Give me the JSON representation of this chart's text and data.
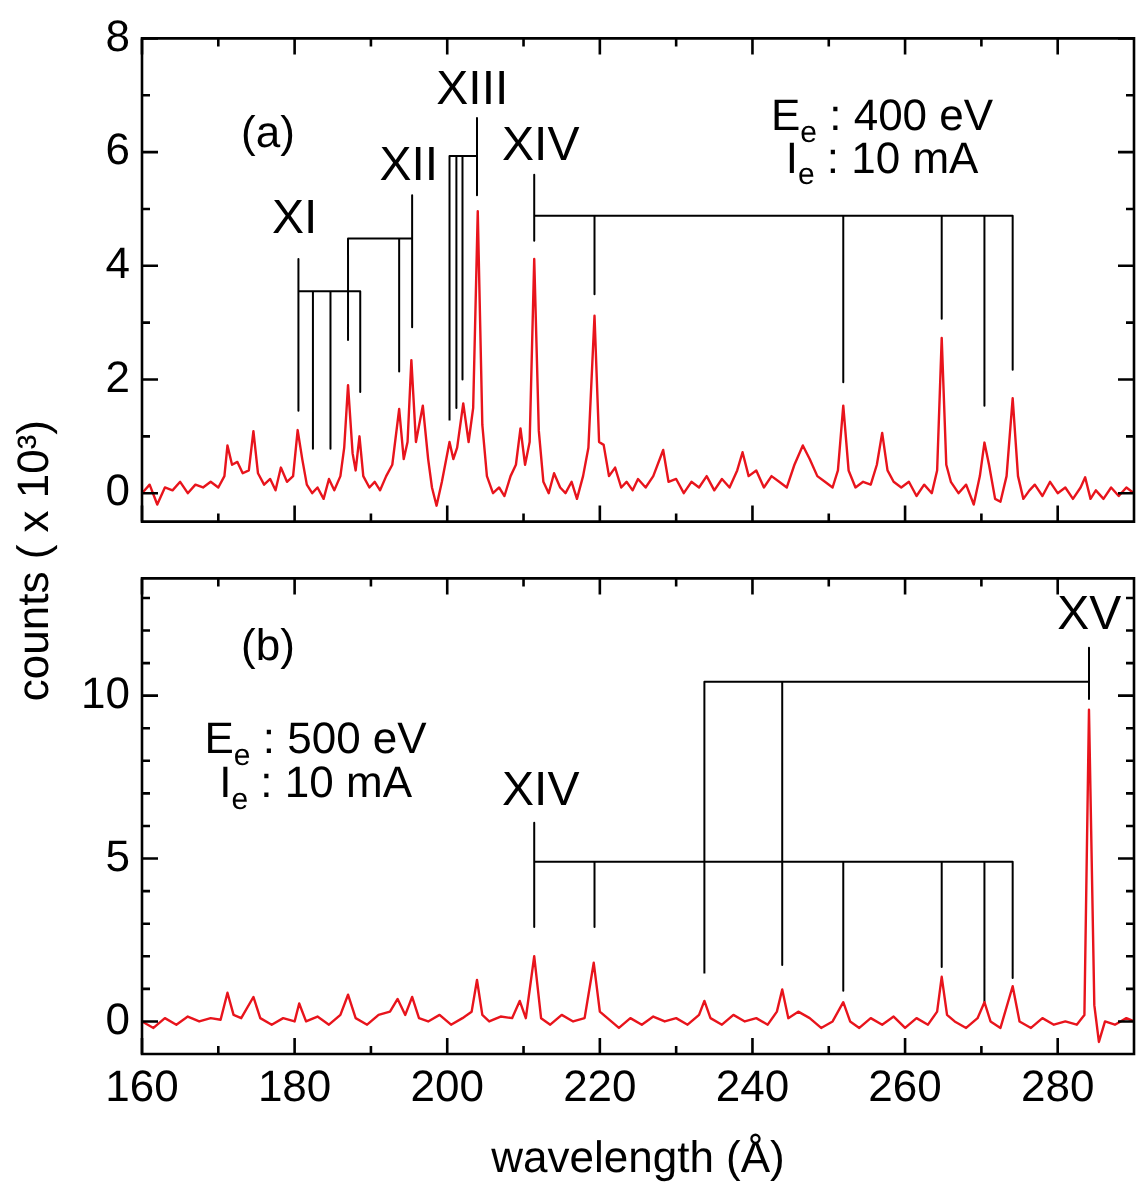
{
  "chart_data": [
    {
      "type": "line",
      "ylabel": "counts ( x 10³)",
      "xlim": [
        160,
        290
      ],
      "ylim": [
        -0.5,
        8
      ],
      "xticks": [
        160,
        {
          "value": 170,
          "label": null
        },
        180,
        {
          "value": 190,
          "label": null
        },
        200,
        {
          "value": 210,
          "label": null
        },
        220,
        {
          "value": 230,
          "label": null
        },
        240,
        {
          "value": 250,
          "label": null
        },
        260,
        {
          "value": 270,
          "label": null
        },
        280
      ],
      "yticks": [
        0,
        {
          "value": 1,
          "label": null
        },
        2,
        {
          "value": 3,
          "label": null
        },
        4,
        {
          "value": 5,
          "label": null
        },
        6,
        {
          "value": 7,
          "label": null
        },
        8
      ],
      "tick_labels": "y",
      "annotations": [
        "(a)",
        "E$_{e}$ : 400 eV",
        "I$_{e}$ : 10 mA",
        "XI",
        "XII",
        "XIII",
        "XIV"
      ],
      "series": [
        {
          "color": "#e8141c",
          "x": [
            160,
            161,
            162,
            163,
            164,
            165,
            166,
            167,
            168,
            169,
            170,
            170.8,
            171.2,
            171.8,
            172.5,
            173.2,
            174,
            174.6,
            175.2,
            176,
            176.8,
            177.5,
            178.2,
            179,
            179.8,
            180.4,
            181,
            181.6,
            182.3,
            183,
            183.8,
            184.5,
            185.2,
            186,
            186.5,
            187,
            187.6,
            188,
            188.5,
            189,
            189.8,
            190.5,
            191.2,
            192,
            192.8,
            193.7,
            194.3,
            194.8,
            195.3,
            195.9,
            196.8,
            197.5,
            198,
            198.6,
            199.3,
            200.3,
            200.8,
            201.3,
            202.1,
            202.8,
            203.4,
            204,
            204.6,
            205.2,
            206,
            206.8,
            207.5,
            208.3,
            209,
            209.6,
            210.2,
            210.8,
            211.4,
            212,
            212.6,
            213.3,
            214,
            214.8,
            215.5,
            216.3,
            217,
            217.8,
            218.5,
            219.3,
            219.9,
            220.5,
            221.2,
            222,
            222.8,
            223.5,
            224.3,
            225,
            226,
            227,
            228.3,
            229,
            230,
            231,
            232,
            233,
            234,
            235,
            236,
            237,
            238,
            238.7,
            239.5,
            240.5,
            241.5,
            242.5,
            243.5,
            244.5,
            245.5,
            246.6,
            247.5,
            248.5,
            249.5,
            250.5,
            251.2,
            251.9,
            252.6,
            253.5,
            254.5,
            255.5,
            256.3,
            257,
            257.7,
            258.5,
            259.5,
            260.5,
            261.5,
            262.5,
            263.5,
            264.2,
            264.8,
            265.4,
            266,
            267,
            268,
            269,
            269.8,
            270.4,
            271,
            271.8,
            272.5,
            273.3,
            274.1,
            274.8,
            275.5,
            276.3,
            277,
            278,
            279,
            280,
            281,
            282,
            283,
            283.6,
            284.3,
            285,
            286,
            287,
            288,
            289,
            290
          ],
          "values": [
            0,
            0.15,
            -0.2,
            0.1,
            0.05,
            0.2,
            0,
            0.15,
            0.1,
            0.2,
            0.1,
            0.3,
            0.84,
            0.5,
            0.55,
            0.35,
            0.4,
            1.09,
            0.35,
            0.15,
            0.25,
            0.05,
            0.45,
            0.2,
            0.3,
            1.11,
            0.6,
            0.15,
            0,
            0.1,
            -0.1,
            0.25,
            0.05,
            0.3,
            0.8,
            1.9,
            0.7,
            0.4,
            1,
            0.3,
            0.1,
            0.2,
            0.05,
            0.3,
            0.5,
            1.48,
            0.6,
            0.9,
            2.34,
            0.9,
            1.54,
            0.6,
            0.1,
            -0.22,
            0.2,
            0.9,
            0.6,
            0.8,
            1.58,
            0.9,
            1.5,
            4.96,
            1.2,
            0.3,
            0,
            0.1,
            -0.05,
            0.3,
            0.5,
            1.14,
            0.5,
            0.9,
            4.12,
            1.1,
            0.2,
            0,
            0.35,
            0.1,
            0,
            0.2,
            -0.1,
            0.3,
            0.8,
            3.12,
            0.9,
            0.85,
            0.3,
            0.45,
            0.1,
            0.2,
            0.05,
            0.25,
            0.1,
            0.3,
            0.76,
            0.2,
            0.25,
            0,
            0.2,
            0.1,
            0.3,
            0.05,
            0.25,
            0.1,
            0.4,
            0.72,
            0.3,
            0.4,
            0.1,
            0.3,
            0.2,
            0.1,
            0.5,
            0.84,
            0.6,
            0.3,
            0.2,
            0.1,
            0.4,
            1.54,
            0.4,
            0.1,
            0.2,
            0.15,
            0.5,
            1.06,
            0.4,
            0.2,
            0.1,
            0.2,
            -0.05,
            0.15,
            0,
            0.4,
            2.73,
            0.5,
            0.2,
            0,
            0.15,
            -0.2,
            0.3,
            0.89,
            0.5,
            -0.1,
            -0.15,
            0.3,
            1.67,
            0.3,
            -0.1,
            0.05,
            0.15,
            -0.05,
            0.2,
            0,
            0.1,
            -0.1,
            0.1,
            0.28,
            -0.1,
            0.05,
            -0.1,
            0.1,
            -0.05,
            0.1,
            0
          ]
        },
        {
          "color": "#000000",
          "x": [
            180.5,
            180.5,
            180.5,
            182.4,
            182.4,
            182.4,
            184.7,
            184.7,
            184.7,
            188.6,
            188.6
          ],
          "values": [
            4.12,
            1.45,
            3.55,
            3.55,
            0.78,
            3.55,
            3.55,
            0.78,
            3.55,
            3.55,
            1.78
          ]
        },
        {
          "color": "#000000",
          "x": [
            187,
            187,
            193.7,
            193.7,
            193.7,
            195.4,
            195.4,
            195.4
          ],
          "values": [
            2.68,
            4.48,
            4.48,
            2.14,
            4.48,
            4.48,
            5.24,
            2.92
          ]
        },
        {
          "color": "#000000",
          "x": [
            200.3,
            200.3,
            201.2,
            201.2,
            201.2,
            202,
            202,
            202,
            203.9,
            203.9,
            203.9
          ],
          "values": [
            1.28,
            5.93,
            5.93,
            1.5,
            5.93,
            5.93,
            2,
            5.93,
            5.93,
            6.6,
            5.24
          ]
        },
        {
          "color": "#000000",
          "x": [
            211.4,
            211.4,
            211.4,
            219.3,
            219.3,
            219.3,
            251.9,
            251.9,
            251.9,
            264.8,
            264.8,
            264.8,
            270.4,
            270.4,
            270.4,
            274.1,
            274.1
          ],
          "values": [
            5.6,
            4.44,
            4.88,
            4.88,
            3.5,
            4.88,
            4.88,
            1.95,
            4.88,
            4.88,
            3.07,
            4.88,
            4.88,
            1.54,
            4.88,
            4.88,
            2.17
          ]
        }
      ]
    },
    {
      "type": "line",
      "xlabel": "wavelength (Å)",
      "xlim": [
        160,
        290
      ],
      "ylim": [
        -1,
        13.6
      ],
      "xticks": [
        160,
        {
          "value": 170,
          "label": null
        },
        180,
        {
          "value": 190,
          "label": null
        },
        200,
        {
          "value": 210,
          "label": null
        },
        220,
        {
          "value": 230,
          "label": null
        },
        240,
        {
          "value": 250,
          "label": null
        },
        260,
        {
          "value": 270,
          "label": null
        },
        280
      ],
      "yticks": [
        0,
        {
          "value": 1,
          "label": null
        },
        {
          "value": 2,
          "label": null
        },
        {
          "value": 3,
          "label": null
        },
        {
          "value": 4,
          "label": null
        },
        5,
        {
          "value": 6,
          "label": null
        },
        {
          "value": 7,
          "label": null
        },
        {
          "value": 8,
          "label": null
        },
        {
          "value": 9,
          "label": null
        },
        10,
        {
          "value": 11,
          "label": null
        },
        {
          "value": 12,
          "label": null
        },
        {
          "value": 13,
          "label": null
        }
      ],
      "annotations": [
        "(b)",
        "E$_{e}$ : 500 eV",
        "I$_{e}$ : 10 mA",
        "XIV",
        "XV"
      ],
      "series": [
        {
          "color": "#e8141c",
          "x": [
            160,
            161.5,
            163,
            164.5,
            166,
            167.5,
            169,
            170.3,
            171.2,
            172,
            173,
            174.6,
            175.5,
            177,
            178.5,
            180,
            180.6,
            181.5,
            183,
            184.5,
            186,
            187,
            188,
            189.5,
            191,
            192.5,
            193.5,
            194.5,
            195.4,
            196.3,
            197.5,
            199,
            200.5,
            202,
            203.2,
            203.9,
            204.6,
            205.5,
            207,
            208.5,
            209.5,
            210.3,
            211.4,
            212.3,
            213.5,
            215,
            216.5,
            218,
            219.2,
            220,
            221,
            222.5,
            224,
            225.5,
            227,
            228.5,
            230,
            231.5,
            233,
            233.7,
            234.5,
            236,
            237.5,
            239,
            240.5,
            242,
            243.2,
            243.9,
            244.7,
            246,
            247.5,
            249,
            250.5,
            251.9,
            252.8,
            254,
            255.5,
            257,
            258.5,
            260,
            261.5,
            263,
            264.2,
            264.8,
            265.5,
            266.5,
            268,
            269.5,
            270.4,
            271.2,
            272.5,
            274.1,
            275,
            276.5,
            278,
            279.5,
            281,
            282.5,
            283.5,
            284.1,
            284.8,
            285.4,
            286.2,
            287.5,
            289,
            290
          ],
          "values": [
            0,
            -0.2,
            0.1,
            -0.1,
            0.15,
            0,
            0.1,
            0.05,
            0.88,
            0.2,
            0.1,
            0.75,
            0.1,
            -0.1,
            0.1,
            0,
            0.55,
            0,
            0.15,
            -0.1,
            0.2,
            0.82,
            0.1,
            -0.1,
            0.2,
            0.3,
            0.69,
            0.2,
            0.75,
            0.1,
            0,
            0.2,
            -0.1,
            0.1,
            0.3,
            1.27,
            0.2,
            0,
            0.15,
            0.1,
            0.63,
            0.1,
            2,
            0.1,
            -0.1,
            0.2,
            0,
            0.1,
            1.8,
            0.3,
            0.1,
            -0.2,
            0.1,
            -0.1,
            0.15,
            0,
            0.1,
            -0.1,
            0.2,
            0.63,
            0.1,
            -0.1,
            0.2,
            0,
            0.1,
            -0.1,
            0.3,
            0.98,
            0.1,
            0.3,
            0.1,
            -0.2,
            0,
            0.59,
            0,
            -0.2,
            0.1,
            -0.1,
            0.15,
            -0.2,
            0.1,
            -0.1,
            0.3,
            1.37,
            0.2,
            0,
            -0.2,
            0.1,
            0.59,
            0,
            -0.2,
            1.08,
            0,
            -0.2,
            0.1,
            -0.1,
            0,
            -0.1,
            0.2,
            9.57,
            0.5,
            -0.63,
            0,
            -0.1,
            0.1,
            0
          ]
        },
        {
          "color": "#000000",
          "x": [
            211.4,
            211.4,
            211.4,
            219.3,
            219.3,
            219.3,
            251.9,
            251.9,
            251.9,
            264.8,
            264.8,
            264.8,
            270.4,
            270.4,
            270.4,
            274.1,
            274.1
          ],
          "values": [
            6.1,
            2.9,
            4.9,
            4.9,
            2.9,
            4.9,
            4.9,
            0.94,
            4.9,
            4.9,
            1.67,
            4.9,
            4.9,
            0.59,
            4.9,
            4.9,
            1.33
          ]
        },
        {
          "color": "#000000",
          "x": [
            233.7,
            233.7,
            243.9,
            243.9,
            243.9,
            284.1,
            284.1,
            284.1
          ],
          "values": [
            1.47,
            10.43,
            10.43,
            1.73,
            10.43,
            10.43,
            11.47,
            9.9
          ]
        }
      ]
    }
  ]
}
